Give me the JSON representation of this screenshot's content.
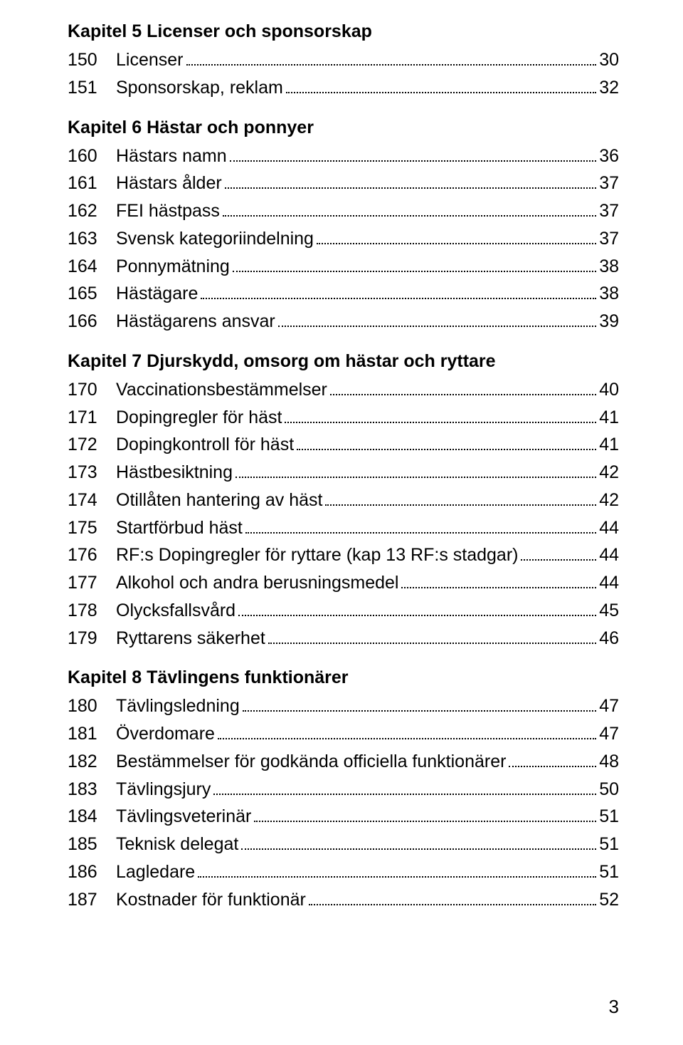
{
  "page_number": "3",
  "chapters": [
    {
      "title": "Kapitel 5 Licenser och sponsorskap",
      "entries": [
        {
          "num": "150",
          "label": "Licenser",
          "page": "30"
        },
        {
          "num": "151",
          "label": "Sponsorskap, reklam",
          "page": "32"
        }
      ]
    },
    {
      "title": "Kapitel 6 Hästar och ponnyer",
      "entries": [
        {
          "num": "160",
          "label": "Hästars namn",
          "page": "36"
        },
        {
          "num": "161",
          "label": "Hästars ålder",
          "page": "37"
        },
        {
          "num": "162",
          "label": "FEI hästpass",
          "page": "37"
        },
        {
          "num": "163",
          "label": "Svensk kategoriindelning",
          "page": "37"
        },
        {
          "num": "164",
          "label": "Ponnymätning",
          "page": "38"
        },
        {
          "num": "165",
          "label": "Hästägare",
          "page": "38"
        },
        {
          "num": "166",
          "label": "Hästägarens ansvar",
          "page": "39"
        }
      ]
    },
    {
      "title": "Kapitel 7 Djurskydd, omsorg om hästar och ryttare",
      "entries": [
        {
          "num": "170",
          "label": "Vaccinationsbestämmelser",
          "page": "40"
        },
        {
          "num": "171",
          "label": "Dopingregler för häst",
          "page": "41"
        },
        {
          "num": "172",
          "label": "Dopingkontroll för häst",
          "page": "41"
        },
        {
          "num": "173",
          "label": "Hästbesiktning",
          "page": "42"
        },
        {
          "num": "174",
          "label": "Otillåten hantering av häst",
          "page": "42"
        },
        {
          "num": "175",
          "label": "Startförbud häst",
          "page": "44"
        },
        {
          "num": "176",
          "label": "RF:s Dopingregler för ryttare (kap 13 RF:s stadgar)",
          "page": "44"
        },
        {
          "num": "177",
          "label": "Alkohol och andra berusningsmedel",
          "page": "44"
        },
        {
          "num": "178",
          "label": "Olycksfallsvård",
          "page": "45"
        },
        {
          "num": "179",
          "label": "Ryttarens säkerhet",
          "page": "46"
        }
      ]
    },
    {
      "title": "Kapitel 8 Tävlingens funktionärer",
      "entries": [
        {
          "num": "180",
          "label": "Tävlingsledning",
          "page": "47"
        },
        {
          "num": "181",
          "label": "Överdomare",
          "page": "47"
        },
        {
          "num": "182",
          "label": "Bestämmelser för godkända officiella funktionärer",
          "page": "48"
        },
        {
          "num": "183",
          "label": "Tävlingsjury",
          "page": "50"
        },
        {
          "num": "184",
          "label": "Tävlingsveterinär",
          "page": "51"
        },
        {
          "num": "185",
          "label": "Teknisk delegat",
          "page": "51"
        },
        {
          "num": "186",
          "label": "Lagledare",
          "page": "51"
        },
        {
          "num": "187",
          "label": "Kostnader för funktionär",
          "page": "52"
        }
      ]
    }
  ]
}
